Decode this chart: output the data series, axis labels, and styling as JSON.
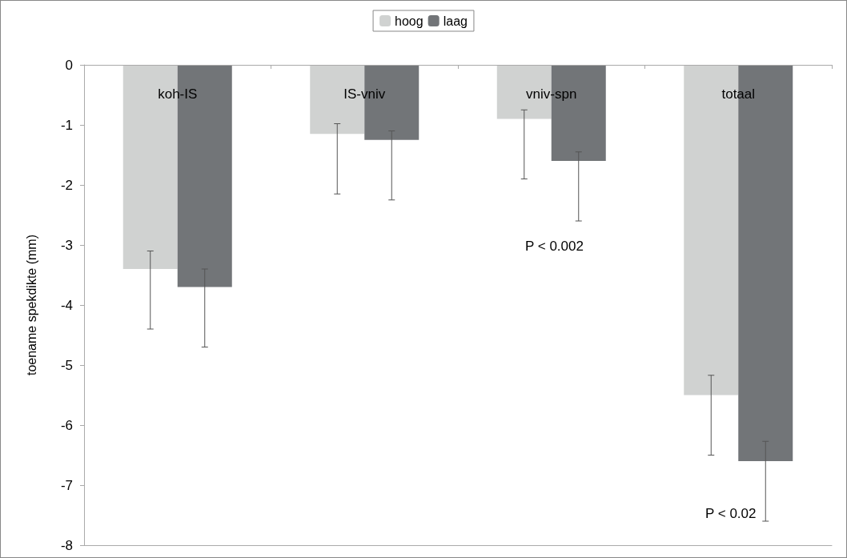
{
  "chart_data": {
    "type": "bar",
    "ylabel": "toename spekdikte (mm)",
    "categories": [
      "koh-IS",
      "IS-vniv",
      "vniv-spn",
      "totaal"
    ],
    "series": [
      {
        "name": "hoog",
        "color": "#d0d2d1",
        "values": [
          -3.4,
          -1.15,
          -0.9,
          -5.5
        ],
        "errors": [
          [
            -4.4,
            -3.1
          ],
          [
            -2.15,
            -0.98
          ],
          [
            -1.9,
            -0.75
          ],
          [
            -6.5,
            -5.17
          ]
        ]
      },
      {
        "name": "laag",
        "color": "#727578",
        "values": [
          -3.7,
          -1.25,
          -1.6,
          -6.6
        ],
        "errors": [
          [
            -4.7,
            -3.4
          ],
          [
            -2.25,
            -1.1
          ],
          [
            -2.6,
            -1.45
          ],
          [
            -7.6,
            -6.27
          ]
        ]
      }
    ],
    "ylim": [
      -8,
      0
    ],
    "yticks": [
      0,
      -1,
      -2,
      -3,
      -4,
      -5,
      -6,
      -7,
      -8
    ],
    "annotations": [
      "P < 0.002",
      "P < 0.02"
    ],
    "grid": false,
    "legend": "top"
  }
}
